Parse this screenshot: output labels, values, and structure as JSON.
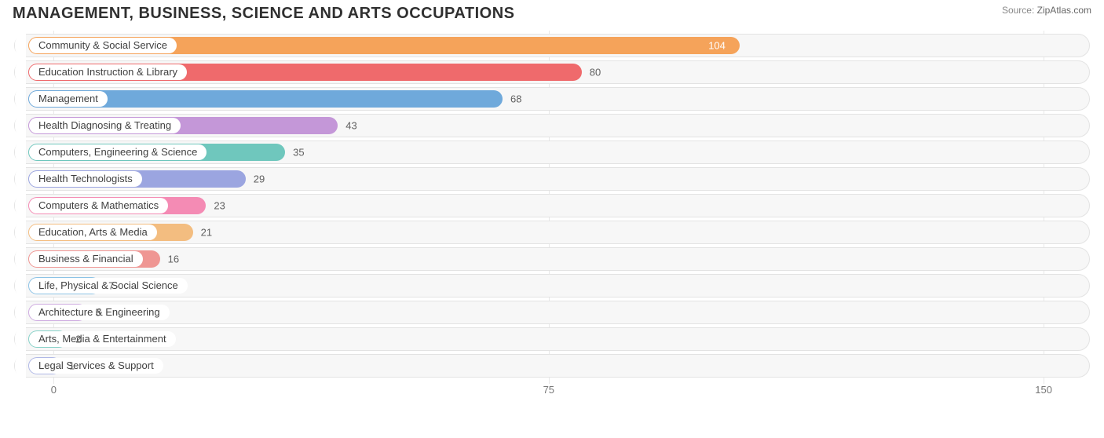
{
  "title": "MANAGEMENT, BUSINESS, SCIENCE AND ARTS OCCUPATIONS",
  "source_label": "Source:",
  "source_value": "ZipAtlas.com",
  "chart": {
    "type": "bar-horizontal",
    "x_min": -6,
    "x_max": 157,
    "ticks": [
      {
        "value": 0,
        "label": "0"
      },
      {
        "value": 75,
        "label": "75"
      },
      {
        "value": 150,
        "label": "150"
      }
    ],
    "track_bg": "#f7f7f7",
    "track_border": "#e3e3e3",
    "grid_color": "#e8e8e8",
    "label_pill_bg": "#ffffff",
    "value_color_outside": "#606060",
    "value_color_inside": "#ffffff",
    "title_color": "#303030",
    "title_fontsize": 20,
    "label_fontsize": 13,
    "bar_origin": -4,
    "rows": [
      {
        "label": "Community & Social Service",
        "value": 104,
        "color": "#f5a35a",
        "value_inside": true
      },
      {
        "label": "Education Instruction & Library",
        "value": 80,
        "color": "#ef6a6c",
        "value_inside": false
      },
      {
        "label": "Management",
        "value": 68,
        "color": "#6fa9db",
        "value_inside": false
      },
      {
        "label": "Health Diagnosing & Treating",
        "value": 43,
        "color": "#c497d8",
        "value_inside": false
      },
      {
        "label": "Computers, Engineering & Science",
        "value": 35,
        "color": "#6fc7bd",
        "value_inside": false
      },
      {
        "label": "Health Technologists",
        "value": 29,
        "color": "#9ba5e0",
        "value_inside": false
      },
      {
        "label": "Computers & Mathematics",
        "value": 23,
        "color": "#f48bb4",
        "value_inside": false
      },
      {
        "label": "Education, Arts & Media",
        "value": 21,
        "color": "#f3bd80",
        "value_inside": false
      },
      {
        "label": "Business & Financial",
        "value": 16,
        "color": "#ef9693",
        "value_inside": false
      },
      {
        "label": "Life, Physical & Social Science",
        "value": 7,
        "color": "#8cc3e6",
        "value_inside": false
      },
      {
        "label": "Architecture & Engineering",
        "value": 5,
        "color": "#ceabe0",
        "value_inside": false
      },
      {
        "label": "Arts, Media & Entertainment",
        "value": 2,
        "color": "#87d1c8",
        "value_inside": false
      },
      {
        "label": "Legal Services & Support",
        "value": 1,
        "color": "#b0b8e6",
        "value_inside": false
      }
    ]
  }
}
